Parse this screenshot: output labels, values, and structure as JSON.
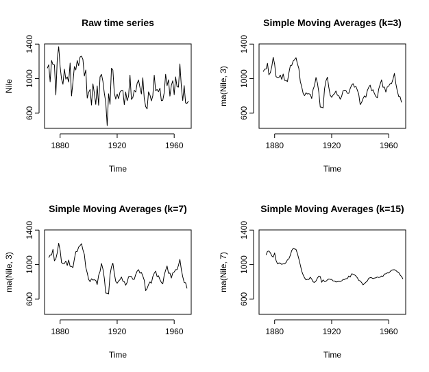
{
  "chart_data": [
    {
      "type": "line",
      "title": "Raw time series",
      "xlabel": "Time",
      "ylabel": "Nile",
      "xlim": [
        1871,
        1970
      ],
      "ylim": [
        456,
        1370
      ],
      "xticks": [
        "1880",
        "1920",
        "1960"
      ],
      "yticks": [
        "600",
        "1000",
        "1400"
      ],
      "grid": false,
      "series": [
        {
          "start": 1871,
          "values": [
            1120,
            1160,
            963,
            1210,
            1160,
            1160,
            813,
            1230,
            1370,
            1140,
            995,
            935,
            1110,
            994,
            1020,
            960,
            1180,
            799,
            958,
            1140,
            1100,
            1210,
            1150,
            1250,
            1260,
            1220,
            1030,
            1100,
            774,
            840,
            874,
            694,
            940,
            833,
            701,
            916,
            692,
            1020,
            1050,
            969,
            831,
            726,
            456,
            824,
            702,
            1120,
            1100,
            832,
            764,
            821,
            768,
            845,
            864,
            862,
            698,
            845,
            744,
            796,
            1040,
            759,
            781,
            865,
            845,
            944,
            984,
            897,
            822,
            1010,
            771,
            676,
            649,
            846,
            812,
            742,
            801,
            1040,
            860,
            874,
            848,
            890,
            744,
            749,
            838,
            1050,
            918,
            986,
            797,
            923,
            975,
            815,
            1020,
            906,
            901,
            1170,
            912,
            746,
            919,
            718,
            714,
            740
          ]
        }
      ]
    },
    {
      "type": "line",
      "title": "Simple Moving Averages (k=3)",
      "xlabel": "Time",
      "ylabel": "ma(Nile, 3)",
      "xlim": [
        1871,
        1970
      ],
      "ylim": [
        456,
        1370
      ],
      "xticks": [
        "1880",
        "1920",
        "1960"
      ],
      "yticks": [
        "600",
        "1000",
        "1400"
      ],
      "grid": false,
      "series": [
        {
          "start": 1872,
          "values": [
            1081,
            1111,
            1111,
            1177,
            1044,
            1068,
            1138,
            1247,
            1168,
            1023,
            1013,
            1013,
            1041,
            991,
            1053,
            980,
            979,
            966,
            1066,
            1150,
            1153,
            1203,
            1220,
            1243,
            1170,
            1117,
            968,
            905,
            829,
            803,
            836,
            822,
            825,
            817,
            770,
            876,
            921,
            1013,
            950,
            842,
            671,
            669,
            661,
            882,
            974,
            1017,
            899,
            806,
            784,
            811,
            826,
            857,
            808,
            802,
            762,
            795,
            860,
            865,
            862,
            830,
            830,
            885,
            924,
            942,
            901,
            910,
            868,
            819,
            699,
            724,
            769,
            800,
            785,
            861,
            900,
            925,
            861,
            871,
            827,
            794,
            777,
            879,
            935,
            985,
            900,
            902,
            845,
            904,
            914,
            942,
            943,
            992,
            1061,
            943,
            859,
            794,
            790,
            724
          ]
        }
      ]
    },
    {
      "type": "line",
      "title": "Simple Moving Averages (k=7)",
      "xlabel": "Time",
      "ylabel": "ma(Nile, 3)",
      "xlim": [
        1871,
        1970
      ],
      "ylim": [
        456,
        1370
      ],
      "xticks": [
        "1880",
        "1920",
        "1960"
      ],
      "yticks": [
        "600",
        "1000",
        "1400"
      ],
      "grid": false,
      "series": [
        {
          "start": 1872,
          "values": [
            1081,
            1111,
            1111,
            1177,
            1044,
            1068,
            1138,
            1247,
            1168,
            1023,
            1013,
            1013,
            1041,
            991,
            1053,
            980,
            979,
            966,
            1066,
            1150,
            1153,
            1203,
            1220,
            1243,
            1170,
            1117,
            968,
            905,
            829,
            803,
            836,
            822,
            825,
            817,
            770,
            876,
            921,
            1013,
            950,
            842,
            671,
            669,
            661,
            882,
            974,
            1017,
            899,
            806,
            784,
            811,
            826,
            857,
            808,
            802,
            762,
            795,
            860,
            865,
            862,
            830,
            830,
            885,
            924,
            942,
            901,
            910,
            868,
            819,
            699,
            724,
            769,
            800,
            785,
            861,
            900,
            925,
            861,
            871,
            827,
            794,
            777,
            879,
            935,
            985,
            900,
            902,
            845,
            904,
            914,
            942,
            943,
            992,
            1061,
            943,
            859,
            794,
            790,
            724
          ]
        }
      ]
    },
    {
      "type": "line",
      "title": "Simple Moving Averages (k=15)",
      "xlabel": "Time",
      "ylabel": "ma(Nile, 7)",
      "xlim": [
        1871,
        1970
      ],
      "ylim": [
        456,
        1370
      ],
      "xticks": [
        "1880",
        "1920",
        "1960"
      ],
      "yticks": [
        "600",
        "1000",
        "1400"
      ],
      "grid": false,
      "series": [
        {
          "start": 1874,
          "values": [
            1112,
            1153,
            1158,
            1137,
            1101,
            1087,
            1135,
            1049,
            1010,
            1019,
            1017,
            1002,
            1011,
            1009,
            1024,
            1056,
            1067,
            1108,
            1164,
            1187,
            1181,
            1176,
            1127,
            1066,
            997,
            925,
            881,
            847,
            824,
            830,
            828,
            854,
            833,
            800,
            795,
            810,
            844,
            867,
            862,
            796,
            823,
            804,
            807,
            823,
            834,
            829,
            829,
            811,
            811,
            799,
            803,
            807,
            804,
            811,
            828,
            828,
            837,
            838,
            868,
            856,
            893,
            890,
            882,
            868,
            848,
            818,
            811,
            793,
            766,
            780,
            797,
            811,
            842,
            849,
            848,
            838,
            844,
            847,
            857,
            851,
            855,
            868,
            864,
            891,
            894,
            905,
            903,
            919,
            936,
            940,
            941,
            933,
            917,
            909,
            880,
            862,
            834
          ]
        }
      ]
    }
  ]
}
